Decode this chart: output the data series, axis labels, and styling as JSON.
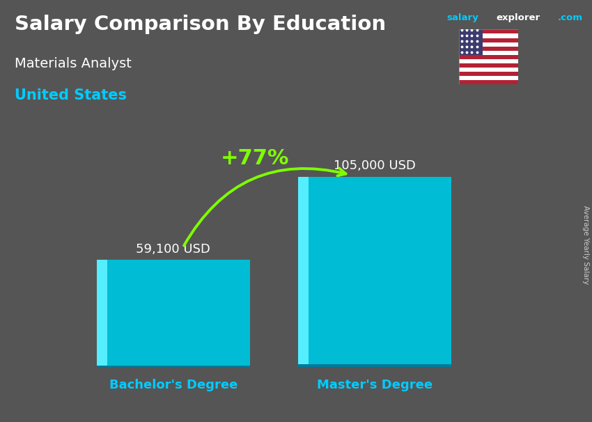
{
  "title_main": "Salary Comparison By Education",
  "title_sub": "Materials Analyst",
  "title_country": "United States",
  "website_salary": "salary",
  "website_explorer": "explorer",
  "website_com": ".com",
  "categories": [
    "Bachelor's Degree",
    "Master's Degree"
  ],
  "values": [
    59100,
    105000
  ],
  "labels": [
    "59,100 USD",
    "105,000 USD"
  ],
  "bar_color_main": "#00bcd4",
  "bar_color_highlight": "#55eeff",
  "bar_color_dark": "#007a9a",
  "pct_label": "+77%",
  "pct_color": "#7fff00",
  "arrow_color": "#7fff00",
  "bg_color": "#555555",
  "text_color_white": "#ffffff",
  "text_color_cyan": "#00ccff",
  "label_color": "#cccccc",
  "side_label": "Average Yearly Salary",
  "ylim_max": 128000,
  "bar_width": 0.32
}
